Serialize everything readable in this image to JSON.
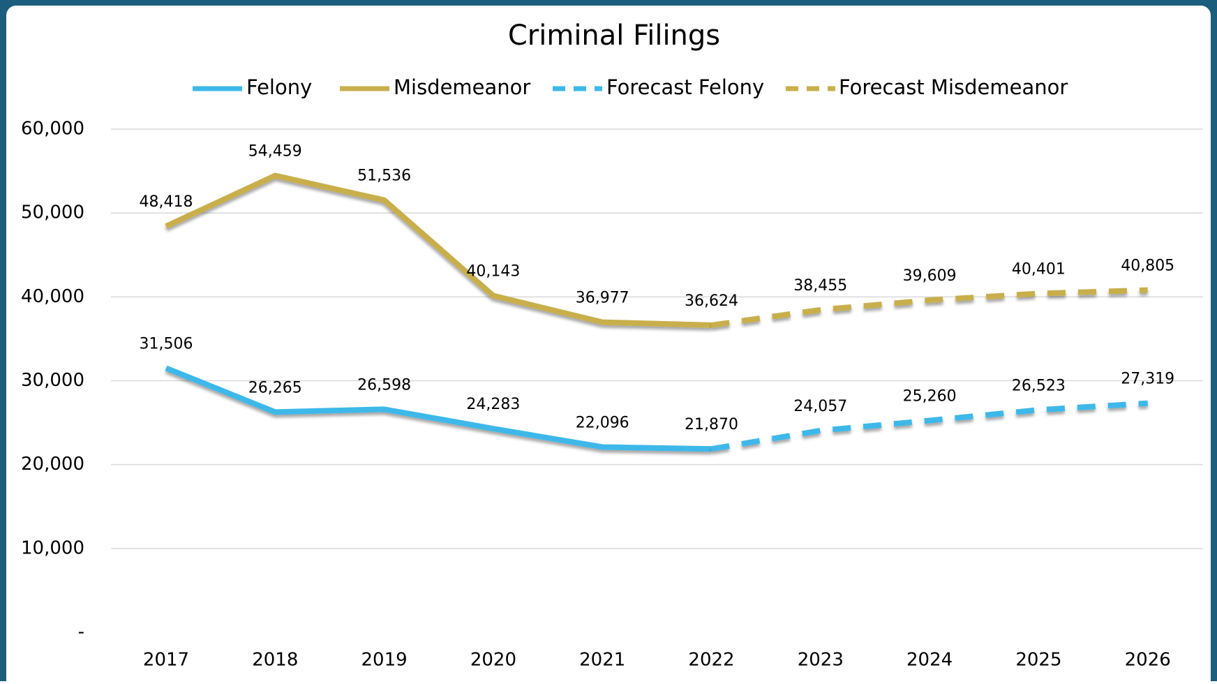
{
  "chart_data": {
    "type": "line",
    "title": "Criminal Filings",
    "categories": [
      "2017",
      "2018",
      "2019",
      "2020",
      "2021",
      "2022",
      "2023",
      "2024",
      "2025",
      "2026"
    ],
    "series": [
      {
        "name": "Felony",
        "color": "#3cb8e9",
        "dashed": false,
        "values": [
          31506,
          26265,
          26598,
          24283,
          22096,
          21870,
          null,
          null,
          null,
          null
        ],
        "value_labels": [
          "31,506",
          "26,265",
          "26,598",
          "24,283",
          "22,096",
          "21,870",
          null,
          null,
          null,
          null
        ]
      },
      {
        "name": "Misdemeanor",
        "color": "#c8af4b",
        "dashed": false,
        "values": [
          48418,
          54459,
          51536,
          40143,
          36977,
          36624,
          null,
          null,
          null,
          null
        ],
        "value_labels": [
          "48,418",
          "54,459",
          "51,536",
          "40,143",
          "36,977",
          "36,624",
          null,
          null,
          null,
          null
        ]
      },
      {
        "name": "Forecast Felony",
        "color": "#3cb8e9",
        "dashed": true,
        "values": [
          null,
          null,
          null,
          null,
          null,
          21870,
          24057,
          25260,
          26523,
          27319
        ],
        "value_labels": [
          null,
          null,
          null,
          null,
          null,
          null,
          "24,057",
          "25,260",
          "26,523",
          "27,319"
        ]
      },
      {
        "name": "Forecast Misdemeanor",
        "color": "#c8af4b",
        "dashed": true,
        "values": [
          null,
          null,
          null,
          null,
          null,
          36624,
          38455,
          39609,
          40401,
          40805
        ],
        "value_labels": [
          null,
          null,
          null,
          null,
          null,
          null,
          "38,455",
          "39,609",
          "40,401",
          "40,805"
        ]
      }
    ],
    "ylim": [
      0,
      60000
    ],
    "yticks": [
      {
        "value": 0,
        "label": "-"
      },
      {
        "value": 10000,
        "label": "10,000"
      },
      {
        "value": 20000,
        "label": "20,000"
      },
      {
        "value": 30000,
        "label": "30,000"
      },
      {
        "value": 40000,
        "label": "40,000"
      },
      {
        "value": 50000,
        "label": "50,000"
      },
      {
        "value": 60000,
        "label": "60,000"
      }
    ],
    "grid": true,
    "legend": "top"
  }
}
